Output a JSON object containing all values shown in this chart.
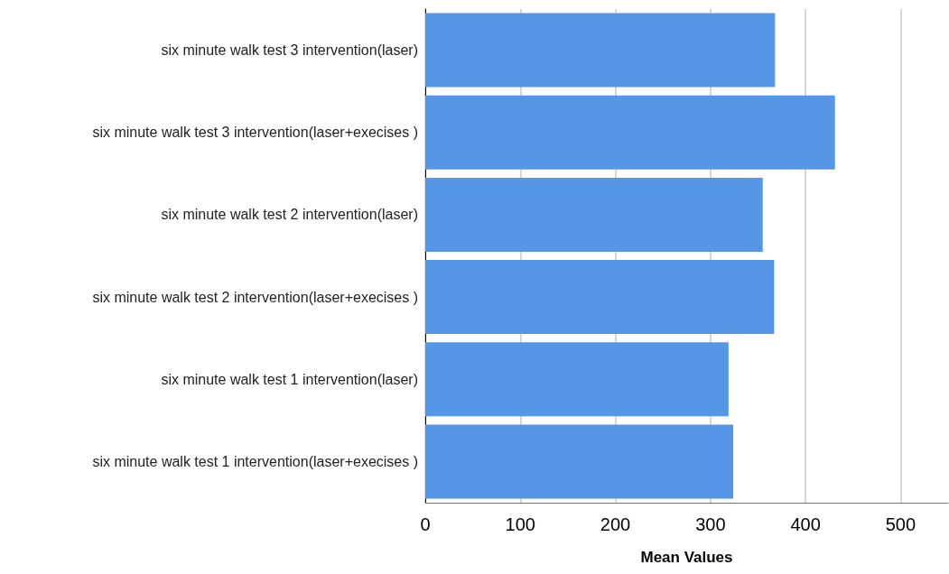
{
  "chart_data": {
    "type": "bar",
    "orientation": "horizontal",
    "xlabel": "Mean Values",
    "categories": [
      "six minute walk test 3 intervention(laser)",
      "six minute walk test 3 intervention(laser+execises )",
      "six minute walk test 2 intervention(laser)",
      "six minute walk test 2 intervention(laser+execises )",
      "six minute walk test 1 intervention(laser)",
      "six minute walk test 1 intervention(laser+execises )"
    ],
    "values": [
      368,
      431,
      355,
      367,
      319,
      324
    ],
    "color": "#5596e6",
    "xlim": [
      0,
      550
    ],
    "xticks": [
      0,
      100,
      200,
      300,
      400,
      500
    ],
    "grid": "x"
  }
}
